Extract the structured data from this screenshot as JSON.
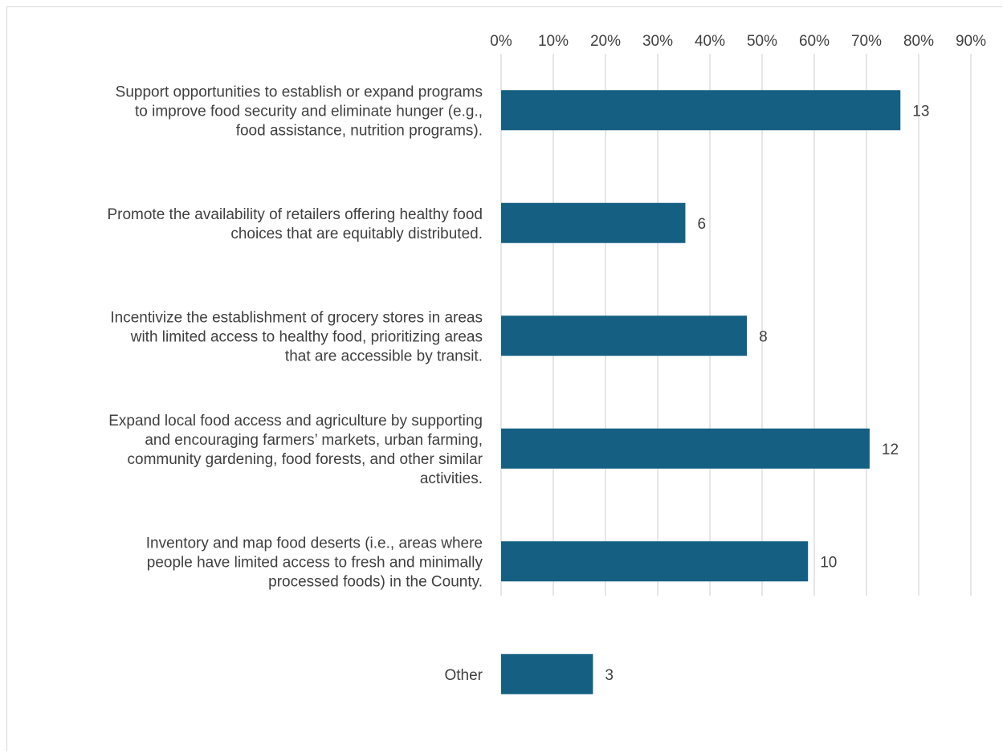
{
  "chart_data": {
    "type": "bar",
    "orientation": "horizontal",
    "title": "",
    "xlabel": "",
    "ylabel": "",
    "x_axis_position": "top",
    "grid": true,
    "legend": "none",
    "xlim": [
      0,
      0.9
    ],
    "x_ticks": [
      0,
      0.1,
      0.2,
      0.3,
      0.4,
      0.5,
      0.6,
      0.7,
      0.8,
      0.9
    ],
    "x_tick_labels": [
      "0%",
      "10%",
      "20%",
      "30%",
      "40%",
      "50%",
      "60%",
      "70%",
      "80%",
      "90%"
    ],
    "categories": [
      "Support opportunities to establish or expand programs to improve food security and eliminate hunger (e.g., food assistance, nutrition programs).",
      "Promote the availability of retailers offering healthy food choices that are equitably distributed.",
      "Incentivize the establishment of grocery stores in areas with limited access to healthy food, prioritizing areas that are accessible by transit.",
      "Expand local food access and agriculture by supporting and encouraging farmers’ markets, urban farming, community gardening, food forests, and other similar activities.",
      "Inventory and map food deserts (i.e., areas where people have limited access to fresh and minimally processed foods) in the County.",
      "Other"
    ],
    "category_lines": [
      [
        "Support opportunities to establish or expand programs",
        "to improve food security and eliminate hunger (e.g.,",
        "food assistance, nutrition programs)."
      ],
      [
        "Promote the availability of retailers offering healthy food",
        "choices that are equitably distributed."
      ],
      [
        "Incentivize the establishment of grocery stores in areas",
        "with limited access to healthy food, prioritizing areas",
        "that are accessible by transit."
      ],
      [
        "Expand local food access and agriculture by supporting",
        "and encouraging farmers’ markets, urban farming,",
        "community gardening, food forests, and other similar",
        "activities."
      ],
      [
        "Inventory and map food deserts (i.e., areas where",
        "people have limited access to fresh and minimally",
        "processed foods) in the County."
      ],
      [
        "Other"
      ]
    ],
    "values": [
      0.765,
      0.353,
      0.471,
      0.706,
      0.588,
      0.176
    ],
    "data_labels": [
      "13",
      "6",
      "8",
      "12",
      "10",
      "3"
    ],
    "bar_color": "#156082",
    "gridline_color": "#d9d9d9",
    "text_color": "#404040"
  }
}
